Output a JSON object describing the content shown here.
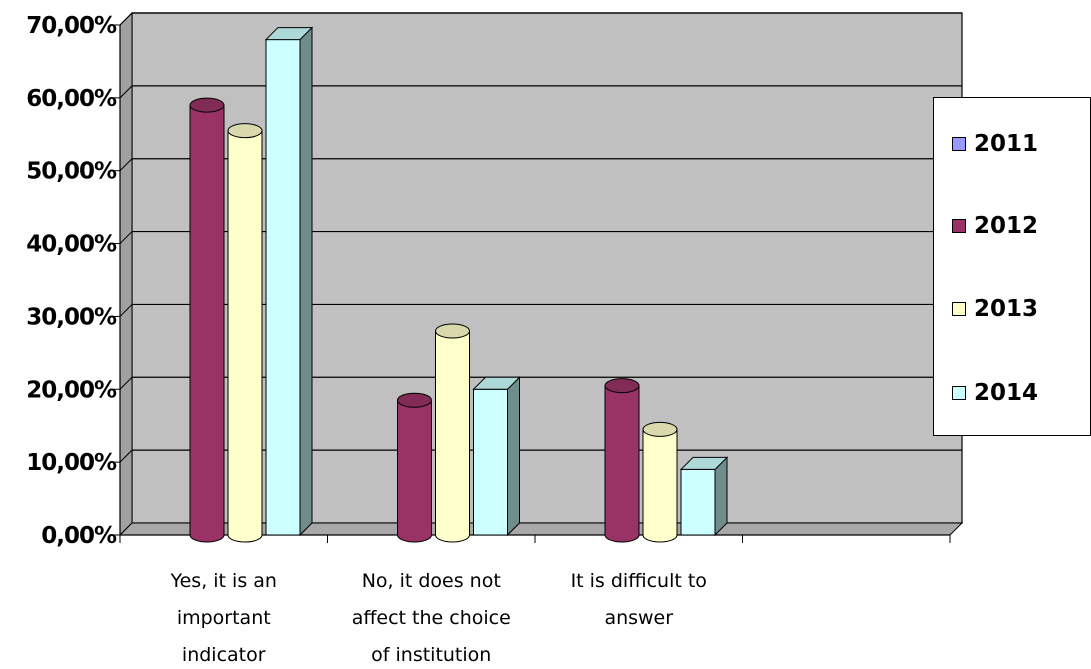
{
  "chart_data": {
    "type": "bar",
    "categories": [
      [
        "Yes, it is an",
        "important",
        "indicator"
      ],
      [
        "No, it does not",
        "affect the choice",
        "of institution"
      ],
      [
        "It is difficult to",
        "answer"
      ],
      [
        ""
      ]
    ],
    "series": [
      {
        "name": "2011",
        "values": [
          0,
          0,
          0,
          0
        ],
        "color": "#9999ff"
      },
      {
        "name": "2012",
        "values": [
          59.0,
          18.5,
          20.5,
          0
        ],
        "color": "#993366"
      },
      {
        "name": "2013",
        "values": [
          55.5,
          28.0,
          14.5,
          0
        ],
        "color": "#ffffcc"
      },
      {
        "name": "2014",
        "values": [
          68.0,
          20.0,
          9.0,
          0
        ],
        "color": "#ccffff"
      }
    ],
    "ylim": [
      0,
      70
    ],
    "yticks": [
      "0,00%",
      "10,00%",
      "20,00%",
      "30,00%",
      "40,00%",
      "50,00%",
      "60,00%",
      "70,00%"
    ],
    "grid": true,
    "legend_position": "right",
    "plot_background": "#c0c0c0"
  }
}
